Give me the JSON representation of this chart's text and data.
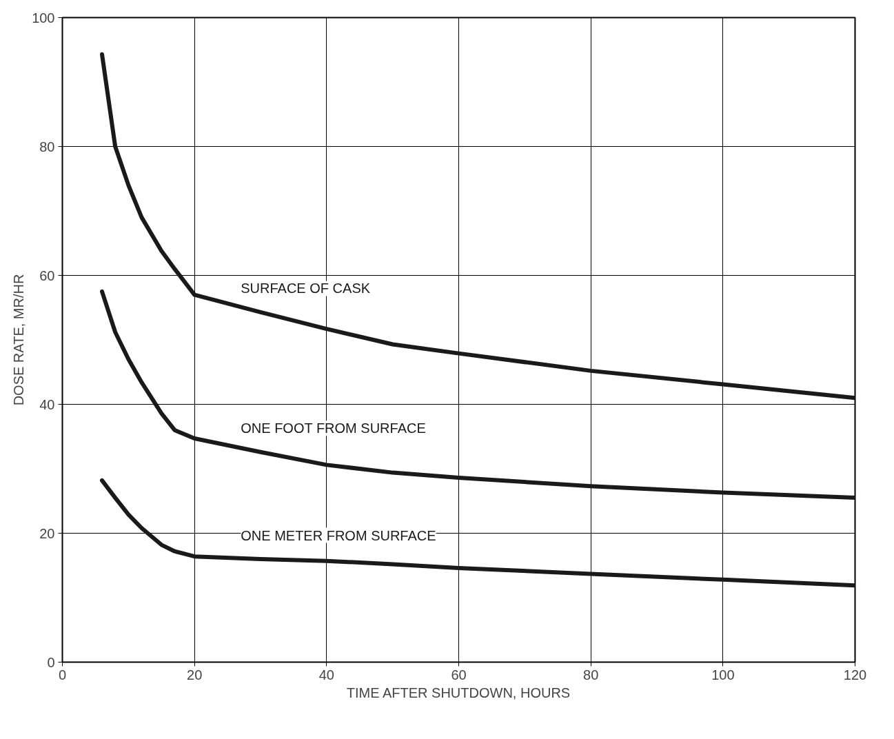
{
  "chart_data": {
    "type": "line",
    "xlabel": "TIME AFTER SHUTDOWN, HOURS",
    "ylabel": "DOSE RATE, MR/HR",
    "x": [
      6,
      8,
      10,
      12,
      15,
      17,
      20,
      30,
      40,
      50,
      60,
      80,
      100,
      120
    ],
    "series": [
      {
        "name": "SURFACE OF CASK",
        "color": "#1a1a1a",
        "values": [
          94.3,
          80,
          74,
          69,
          63.8,
          61,
          57,
          54.3,
          51.7,
          49.3,
          47.9,
          45.2,
          43.1,
          41
        ]
      },
      {
        "name": "ONE FOOT FROM SURFACE",
        "color": "#1a1a1a",
        "values": [
          57.5,
          51.2,
          47,
          43.4,
          38.6,
          36,
          34.7,
          32.6,
          30.6,
          29.4,
          28.6,
          27.3,
          26.3,
          25.5
        ]
      },
      {
        "name": "ONE METER FROM SURFACE",
        "color": "#1a1a1a",
        "values": [
          28.2,
          25.5,
          22.9,
          20.8,
          18.2,
          17.2,
          16.4,
          16.0,
          15.7,
          15.2,
          14.6,
          13.7,
          12.8,
          11.9
        ]
      }
    ],
    "xlim": [
      0,
      120
    ],
    "ylim": [
      0,
      100
    ],
    "xticks": [
      0,
      20,
      40,
      60,
      80,
      100,
      120
    ],
    "yticks": [
      0,
      20,
      40,
      60,
      80,
      100
    ],
    "grid": true,
    "legend": false,
    "marker": "none",
    "line_style": "solid"
  }
}
